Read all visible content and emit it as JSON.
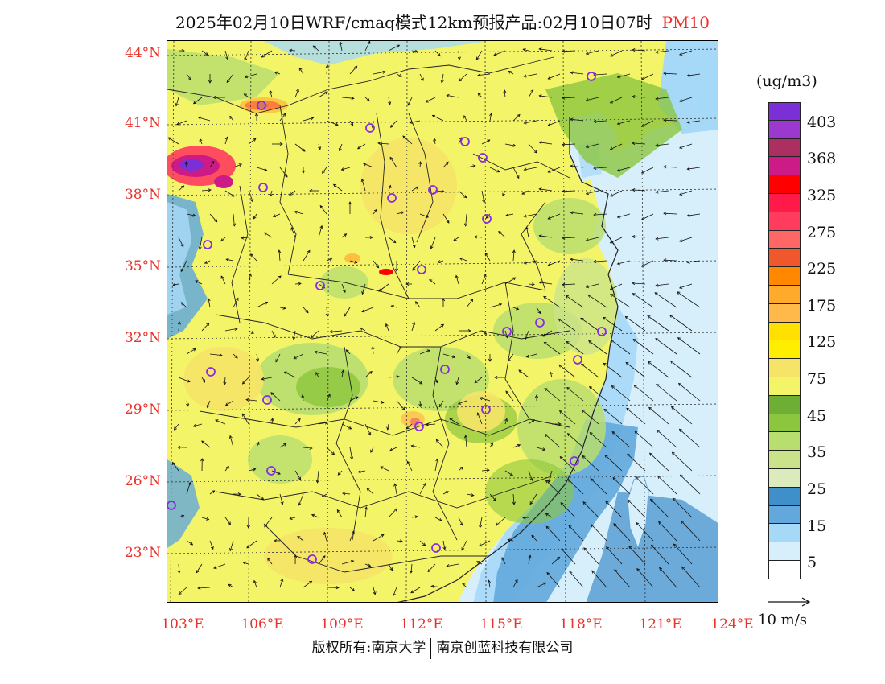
{
  "title": {
    "main": "2025年02月10日WRF/cmaq模式12km预报产品:02月10日07时",
    "pollutant": "PM10"
  },
  "axes": {
    "lat_labels": [
      "44°N",
      "41°N",
      "38°N",
      "35°N",
      "32°N",
      "29°N",
      "26°N",
      "23°N"
    ],
    "lon_labels": [
      "103°E",
      "106°E",
      "109°E",
      "112°E",
      "115°E",
      "118°E",
      "121°E",
      "124°E"
    ],
    "lat_range": [
      21,
      44.5
    ],
    "lon_range": [
      102.8,
      124
    ]
  },
  "legend": {
    "unit": "(ug/m3)",
    "colors": [
      "#7b2fd6",
      "#9a38cf",
      "#ac2f62",
      "#cc1b86",
      "#fe0000",
      "#ff1a4a",
      "#ff3b5e",
      "#ff6666",
      "#f0572c",
      "#ff8800",
      "#ffaa2a",
      "#ffb84a",
      "#ffe000",
      "#ffee00",
      "#f5e468",
      "#f4f469",
      "#6fae35",
      "#8cc63e",
      "#b8de6f",
      "#cae38a",
      "#dcebbb",
      "#3f8fca",
      "#62a8dc",
      "#a6d8f7",
      "#d6effb",
      "#ffffff"
    ],
    "labels": [
      "403",
      "368",
      "325",
      "275",
      "225",
      "175",
      "125",
      "75",
      "45",
      "35",
      "25",
      "15",
      "5"
    ]
  },
  "wind": {
    "reference_label": "10 m/s"
  },
  "copyright": {
    "left": "版权所有:南京大学",
    "right": "南京创蓝科技有限公司"
  },
  "map_colors": {
    "sea_light": "#d6effb",
    "sea_mid": "#a6d8f7",
    "sea_dark": "#62a8dc",
    "land_yellow": "#f4f469",
    "land_gold": "#f5e468",
    "land_green": "#b8de6f",
    "land_lightgreen": "#cae38a",
    "land_dark_green": "#8cc63e",
    "station_ring": "#8a2be2"
  }
}
